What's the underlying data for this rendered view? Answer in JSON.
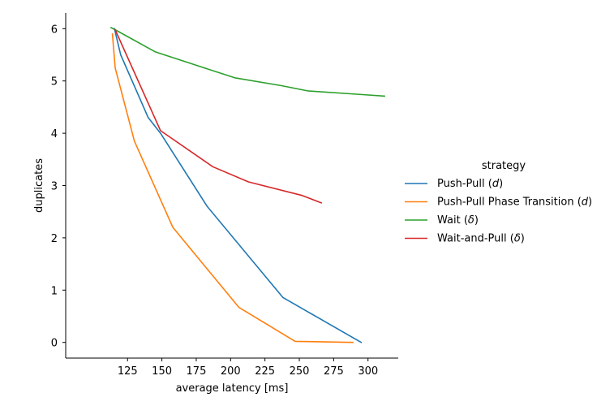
{
  "chart_data": {
    "type": "line",
    "xlabel": "average latency [ms]",
    "ylabel": "duplicates",
    "xlim": [
      80,
      322
    ],
    "ylim": [
      -0.3,
      6.3
    ],
    "xticks": [
      125,
      150,
      175,
      200,
      225,
      250,
      275,
      300
    ],
    "yticks": [
      0,
      1,
      2,
      3,
      4,
      5,
      6
    ],
    "grid": false,
    "legend": {
      "title": "strategy",
      "placement": "right",
      "entries": [
        {
          "label": "Push-Pull (d)",
          "base": "Push-Pull (",
          "sym": "d",
          "tail": ")"
        },
        {
          "label": "Push-Pull Phase Transition (d)",
          "base": "Push-Pull Phase Transition (",
          "sym": "d",
          "tail": ")"
        },
        {
          "label": "Wait (δ)",
          "base": "Wait (",
          "sym": "δ",
          "tail": ")"
        },
        {
          "label": "Wait-and-Pull (δ)",
          "base": "Wait-and-Pull (",
          "sym": "δ",
          "tail": ")"
        }
      ]
    },
    "series": [
      {
        "name": "Push-Pull (d)",
        "color": "#1f77b4",
        "points": [
          [
            115.5,
            6.0
          ],
          [
            120,
            5.5
          ],
          [
            140,
            4.3
          ],
          [
            149,
            4.0
          ],
          [
            183,
            2.6
          ],
          [
            238,
            0.86
          ],
          [
            295,
            0.0
          ]
        ]
      },
      {
        "name": "Push-Pull Phase Transition (d)",
        "color": "#ff7f0e",
        "points": [
          [
            114,
            5.9
          ],
          [
            116,
            5.25
          ],
          [
            130,
            3.85
          ],
          [
            158,
            2.2
          ],
          [
            206,
            0.67
          ],
          [
            247,
            0.02
          ],
          [
            289,
            0.0
          ]
        ]
      },
      {
        "name": "Wait (δ)",
        "color": "#2ca02c",
        "points": [
          [
            113,
            6.02
          ],
          [
            118,
            5.95
          ],
          [
            145,
            5.56
          ],
          [
            175,
            5.3
          ],
          [
            203,
            5.06
          ],
          [
            237,
            4.91
          ],
          [
            256,
            4.81
          ],
          [
            296,
            4.74
          ],
          [
            312,
            4.71
          ]
        ]
      },
      {
        "name": "Wait-and-Pull (δ)",
        "color": "#d62728",
        "points": [
          [
            116,
            5.98
          ],
          [
            149,
            4.05
          ],
          [
            187,
            3.36
          ],
          [
            213,
            3.07
          ],
          [
            252,
            2.81
          ],
          [
            266,
            2.67
          ]
        ]
      }
    ]
  }
}
